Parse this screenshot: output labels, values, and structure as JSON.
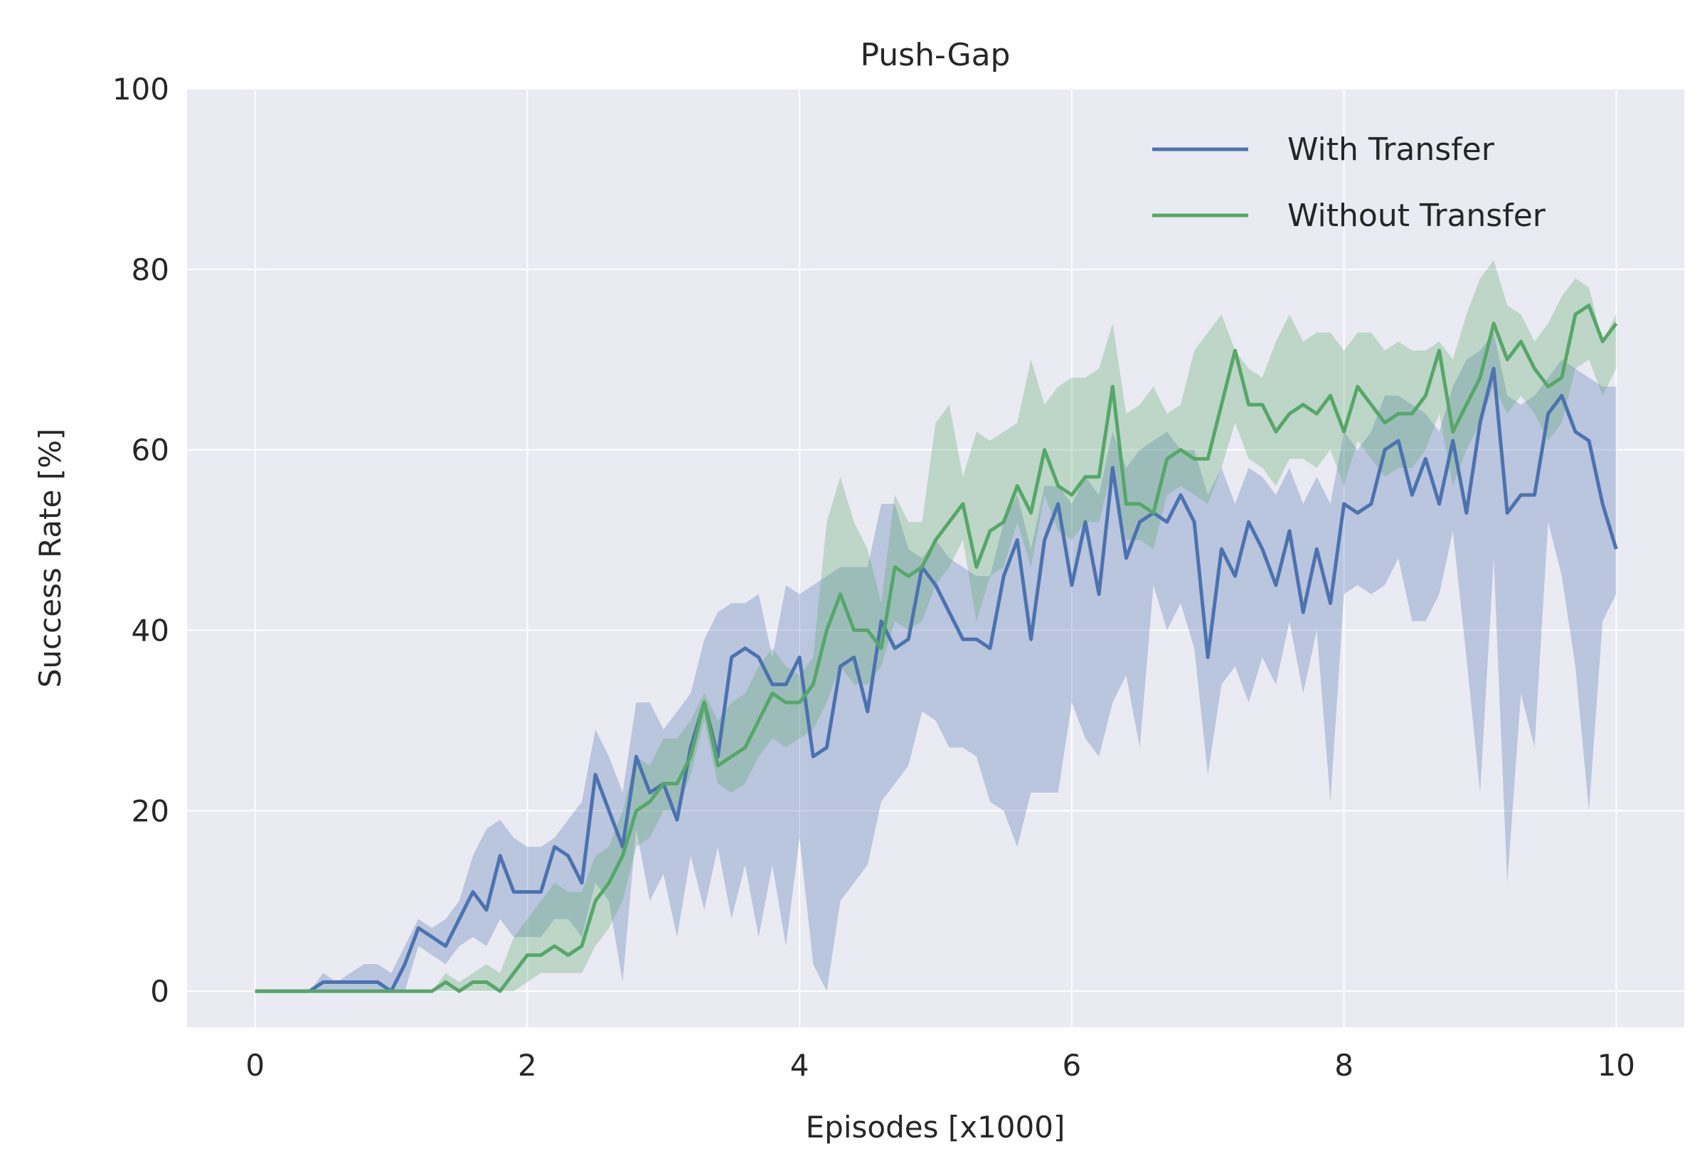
{
  "chart_data": {
    "type": "line",
    "title": "Push-Gap",
    "xlabel": "Episodes [x1000]",
    "ylabel": "Success Rate [%]",
    "xlim": [
      -0.5,
      10.5
    ],
    "ylim": [
      -4,
      100
    ],
    "xticks": [
      0,
      2,
      4,
      6,
      8,
      10
    ],
    "yticks": [
      0,
      20,
      40,
      60,
      80,
      100
    ],
    "grid": true,
    "legend_position": "top-right",
    "x": [
      0,
      0.1,
      0.2,
      0.3,
      0.4,
      0.5,
      0.6,
      0.7,
      0.8,
      0.9,
      1.0,
      1.1,
      1.2,
      1.3,
      1.4,
      1.5,
      1.6,
      1.7,
      1.8,
      1.9,
      2.0,
      2.1,
      2.2,
      2.3,
      2.4,
      2.5,
      2.6,
      2.7,
      2.8,
      2.9,
      3.0,
      3.1,
      3.2,
      3.3,
      3.4,
      3.5,
      3.6,
      3.7,
      3.8,
      3.9,
      4.0,
      4.1,
      4.2,
      4.3,
      4.4,
      4.5,
      4.6,
      4.7,
      4.8,
      4.9,
      5.0,
      5.1,
      5.2,
      5.3,
      5.4,
      5.5,
      5.6,
      5.7,
      5.8,
      5.9,
      6.0,
      6.1,
      6.2,
      6.3,
      6.4,
      6.5,
      6.6,
      6.7,
      6.8,
      6.9,
      7.0,
      7.1,
      7.2,
      7.3,
      7.4,
      7.5,
      7.6,
      7.7,
      7.8,
      7.9,
      8.0,
      8.1,
      8.2,
      8.3,
      8.4,
      8.5,
      8.6,
      8.7,
      8.8,
      8.9,
      9.0,
      9.1,
      9.2,
      9.3,
      9.4,
      9.5,
      9.6,
      9.7,
      9.8,
      9.9,
      10.0
    ],
    "series": [
      {
        "name": "With Transfer",
        "color": "#4c72b0",
        "values": [
          0,
          0,
          0,
          0,
          0,
          1,
          1,
          1,
          1,
          1,
          0,
          3,
          7,
          6,
          5,
          8,
          11,
          9,
          15,
          11,
          11,
          11,
          16,
          15,
          12,
          24,
          20,
          16,
          26,
          22,
          23,
          19,
          27,
          32,
          26,
          37,
          38,
          37,
          34,
          34,
          37,
          26,
          27,
          36,
          37,
          31,
          41,
          38,
          39,
          47,
          45,
          42,
          39,
          39,
          38,
          46,
          50,
          39,
          50,
          54,
          45,
          52,
          44,
          58,
          48,
          52,
          53,
          52,
          55,
          52,
          37,
          49,
          46,
          52,
          49,
          45,
          51,
          42,
          49,
          43,
          54,
          53,
          54,
          60,
          61,
          55,
          59,
          54,
          61,
          53,
          63,
          69,
          53,
          55,
          55,
          64,
          66,
          62,
          61,
          54,
          49
        ],
        "upper": [
          0,
          0,
          0,
          0,
          0,
          2,
          1,
          2,
          3,
          3,
          2,
          5,
          8,
          7,
          8,
          10,
          15,
          18,
          19,
          17,
          16,
          16,
          17,
          19,
          21,
          29,
          26,
          22,
          32,
          32,
          29,
          31,
          33,
          39,
          42,
          43,
          43,
          44,
          37,
          45,
          44,
          45,
          46,
          47,
          47,
          47,
          54,
          54,
          49,
          48,
          50,
          48,
          47,
          46,
          46,
          52,
          55,
          49,
          56,
          56,
          54,
          57,
          55,
          62,
          58,
          60,
          61,
          62,
          60,
          60,
          55,
          58,
          54,
          58,
          57,
          55,
          58,
          54,
          57,
          54,
          62,
          60,
          62,
          66,
          66,
          65,
          64,
          62,
          67,
          70,
          71,
          73,
          66,
          65,
          66,
          68,
          70,
          69,
          68,
          67,
          67
        ],
        "lower": [
          0,
          0,
          0,
          0,
          0,
          0,
          0,
          0,
          0,
          0,
          0,
          0,
          5,
          4,
          3,
          5,
          6,
          5,
          8,
          6,
          6,
          6,
          8,
          8,
          6,
          12,
          10,
          1,
          18,
          10,
          13,
          6,
          15,
          9,
          16,
          8,
          14,
          6,
          14,
          5,
          17,
          3,
          0,
          10,
          12,
          14,
          21,
          23,
          25,
          31,
          30,
          27,
          27,
          26,
          21,
          20,
          16,
          22,
          22,
          22,
          32,
          28,
          26,
          32,
          35,
          27,
          45,
          40,
          43,
          38,
          24,
          34,
          36,
          32,
          37,
          34,
          41,
          33,
          40,
          21,
          44,
          45,
          44,
          45,
          48,
          41,
          41,
          44,
          51,
          37,
          22,
          48,
          12,
          33,
          27,
          52,
          46,
          36,
          20,
          41,
          44
        ]
      },
      {
        "name": "Without Transfer",
        "color": "#55a868",
        "values": [
          0,
          0,
          0,
          0,
          0,
          0,
          0,
          0,
          0,
          0,
          0,
          0,
          0,
          0,
          1,
          0,
          1,
          1,
          0,
          2,
          4,
          4,
          5,
          4,
          5,
          10,
          12,
          15,
          20,
          21,
          23,
          23,
          26,
          32,
          25,
          26,
          27,
          30,
          33,
          32,
          32,
          34,
          40,
          44,
          40,
          40,
          38,
          47,
          46,
          47,
          50,
          52,
          54,
          47,
          51,
          52,
          56,
          53,
          60,
          56,
          55,
          57,
          57,
          67,
          54,
          54,
          53,
          59,
          60,
          59,
          59,
          65,
          71,
          65,
          65,
          62,
          64,
          65,
          64,
          66,
          62,
          67,
          65,
          63,
          64,
          64,
          66,
          71,
          62,
          65,
          68,
          74,
          70,
          72,
          69,
          67,
          68,
          75,
          76,
          72,
          74
        ],
        "upper": [
          0,
          0,
          0,
          0,
          0,
          0,
          0,
          0,
          0,
          0,
          0,
          0,
          0,
          0,
          2,
          1,
          2,
          3,
          2,
          6,
          8,
          10,
          12,
          11,
          11,
          15,
          16,
          20,
          26,
          25,
          28,
          28,
          30,
          33,
          30,
          32,
          33,
          36,
          38,
          36,
          35,
          37,
          52,
          57,
          52,
          49,
          43,
          55,
          52,
          52,
          63,
          65,
          57,
          62,
          61,
          62,
          63,
          70,
          65,
          67,
          68,
          68,
          69,
          74,
          64,
          65,
          67,
          64,
          65,
          71,
          73,
          75,
          71,
          69,
          68,
          72,
          75,
          72,
          73,
          73,
          71,
          73,
          73,
          71,
          72,
          71,
          71,
          72,
          70,
          75,
          79,
          81,
          76,
          75,
          72,
          74,
          77,
          79,
          78,
          72,
          75
        ],
        "lower": [
          0,
          0,
          0,
          0,
          0,
          0,
          0,
          0,
          0,
          0,
          0,
          0,
          0,
          0,
          0,
          0,
          0,
          0,
          0,
          0,
          1,
          2,
          2,
          2,
          2,
          5,
          7,
          10,
          16,
          17,
          20,
          20,
          24,
          30,
          23,
          22,
          23,
          26,
          28,
          27,
          28,
          29,
          32,
          36,
          34,
          34,
          36,
          41,
          40,
          41,
          45,
          47,
          50,
          41,
          46,
          47,
          52,
          47,
          55,
          51,
          50,
          52,
          52,
          58,
          50,
          50,
          49,
          55,
          56,
          55,
          54,
          58,
          63,
          59,
          58,
          56,
          59,
          59,
          58,
          60,
          56,
          61,
          59,
          57,
          58,
          58,
          60,
          64,
          56,
          60,
          63,
          67,
          64,
          66,
          64,
          61,
          63,
          69,
          70,
          66,
          69
        ]
      }
    ]
  }
}
